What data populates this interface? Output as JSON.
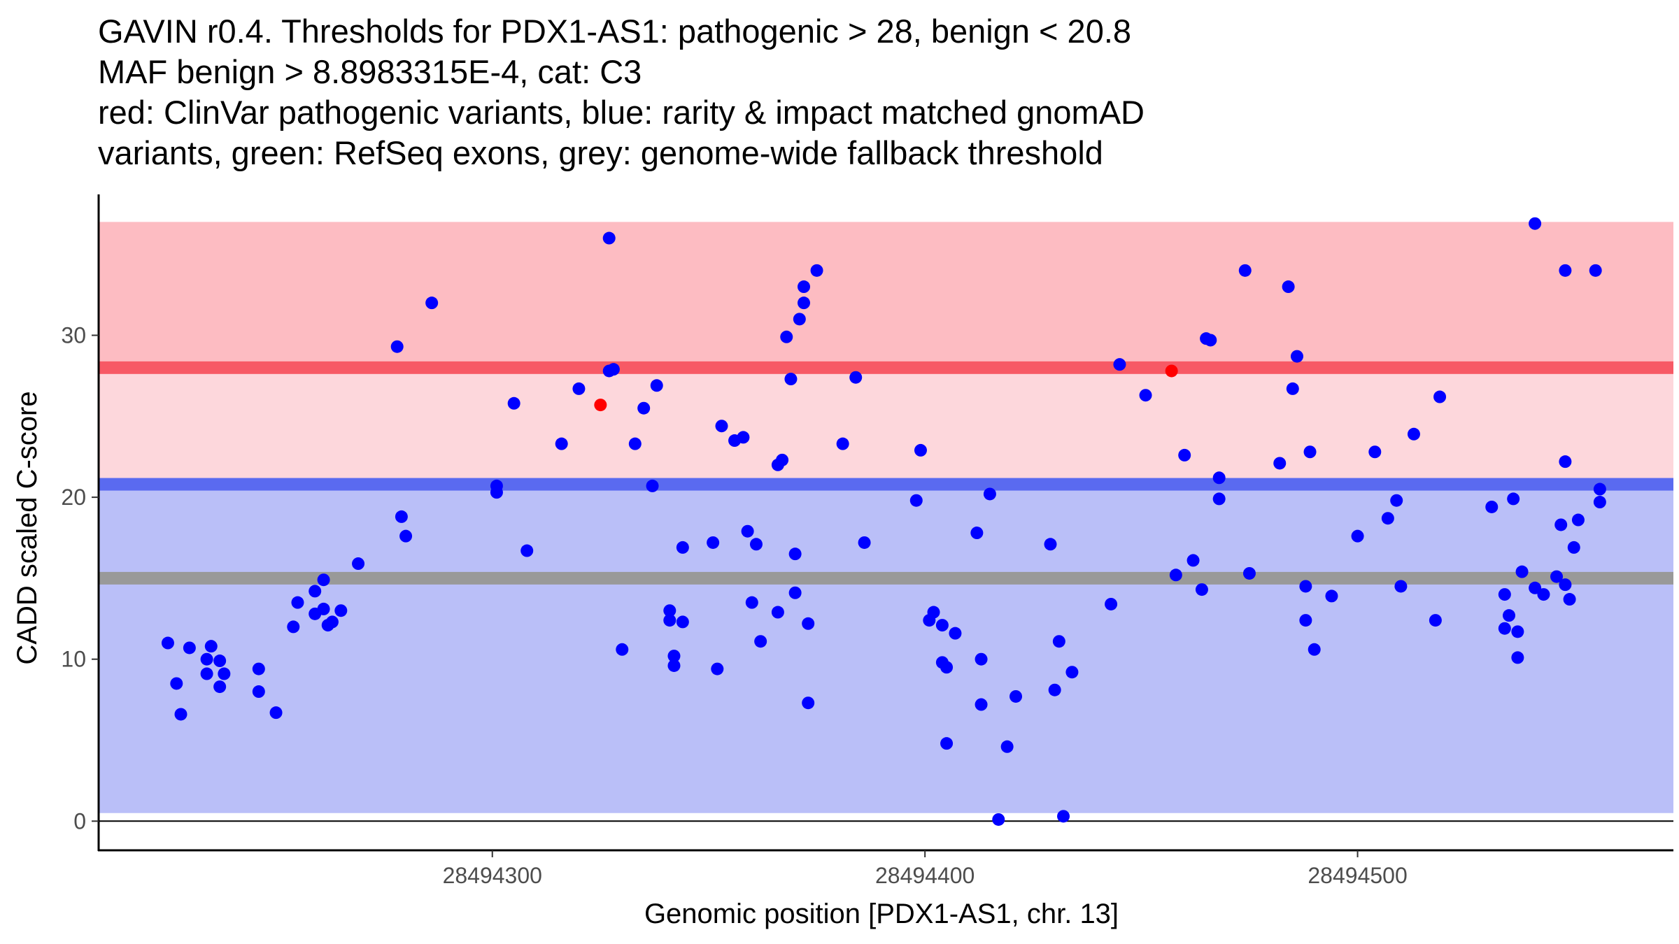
{
  "title_lines": [
    "GAVIN r0.4. Thresholds for PDX1-AS1: pathogenic > 28, benign < 20.8",
    "MAF benign > 8.8983315E-4, cat: C3",
    "red: ClinVar pathogenic variants, blue: rarity & impact matched gnomAD",
    "variants, green: RefSeq exons, grey: genome-wide fallback threshold"
  ],
  "chart_data": {
    "type": "scatter",
    "title": "GAVIN r0.4. Thresholds for PDX1-AS1: pathogenic > 28, benign < 20.8 / MAF benign > 8.8983315E-4, cat: C3",
    "xlabel": "Genomic position [PDX1-AS1, chr. 13]",
    "ylabel": "CADD scaled C-score",
    "xlim": [
      28494209,
      28494573
    ],
    "ylim": [
      -1.8,
      38.7
    ],
    "x_ticks": [
      28494300,
      28494400,
      28494500
    ],
    "x_tick_labels": [
      "28494300",
      "28494400",
      "28494500"
    ],
    "y_ticks": [
      0,
      10,
      20,
      30
    ],
    "y_tick_labels": [
      "0",
      "10",
      "20",
      "30"
    ],
    "colors": {
      "pathogenic_band": "#fdbcc2",
      "intermediate_band": "#fdd7dc",
      "benign_band": "#babff8",
      "pathogenic_line": "#f75965",
      "benign_line": "#5a6af0",
      "fallback_line": "#999999",
      "gnomad_points": "#0000ff",
      "clinvar_points": "#ff0000"
    },
    "bands": [
      {
        "name": "pathogenic region",
        "y0": 28,
        "y1": 37
      },
      {
        "name": "intermediate region",
        "y0": 20.8,
        "y1": 28
      },
      {
        "name": "benign region",
        "y0": 0.5,
        "y1": 20.8
      }
    ],
    "threshold_lines": [
      {
        "name": "pathogenic threshold",
        "y": 28
      },
      {
        "name": "benign threshold",
        "y": 20.8
      },
      {
        "name": "genome-wide fallback threshold",
        "y": 15
      }
    ],
    "series": [
      {
        "name": "ClinVar pathogenic variants",
        "points": [
          [
            28494325,
            25.7
          ],
          [
            28494457,
            27.8
          ]
        ]
      },
      {
        "name": "rarity & impact matched gnomAD variants",
        "points": [
          [
            28494225,
            11.0
          ],
          [
            28494227,
            8.5
          ],
          [
            28494228,
            6.6
          ],
          [
            28494230,
            10.7
          ],
          [
            28494234,
            10.0
          ],
          [
            28494234,
            9.1
          ],
          [
            28494235,
            10.8
          ],
          [
            28494237,
            8.3
          ],
          [
            28494237,
            9.9
          ],
          [
            28494238,
            9.1
          ],
          [
            28494246,
            9.4
          ],
          [
            28494246,
            8.0
          ],
          [
            28494250,
            6.7
          ],
          [
            28494254,
            12.0
          ],
          [
            28494255,
            13.5
          ],
          [
            28494259,
            14.2
          ],
          [
            28494259,
            12.8
          ],
          [
            28494261,
            14.9
          ],
          [
            28494261,
            13.1
          ],
          [
            28494262,
            12.1
          ],
          [
            28494263,
            12.3
          ],
          [
            28494265,
            13.0
          ],
          [
            28494269,
            15.9
          ],
          [
            28494278,
            29.3
          ],
          [
            28494279,
            18.8
          ],
          [
            28494280,
            17.6
          ],
          [
            28494286,
            32.0
          ],
          [
            28494301,
            20.7
          ],
          [
            28494301,
            20.3
          ],
          [
            28494305,
            25.8
          ],
          [
            28494308,
            16.7
          ],
          [
            28494316,
            23.3
          ],
          [
            28494320,
            26.7
          ],
          [
            28494327,
            36.0
          ],
          [
            28494327,
            27.8
          ],
          [
            28494328,
            27.9
          ],
          [
            28494330,
            10.6
          ],
          [
            28494333,
            23.3
          ],
          [
            28494335,
            25.5
          ],
          [
            28494337,
            20.7
          ],
          [
            28494338,
            26.9
          ],
          [
            28494341,
            13.0
          ],
          [
            28494341,
            12.4
          ],
          [
            28494342,
            10.2
          ],
          [
            28494342,
            9.6
          ],
          [
            28494344,
            16.9
          ],
          [
            28494344,
            12.3
          ],
          [
            28494351,
            17.2
          ],
          [
            28494352,
            9.4
          ],
          [
            28494353,
            24.4
          ],
          [
            28494356,
            23.5
          ],
          [
            28494358,
            23.7
          ],
          [
            28494359,
            17.9
          ],
          [
            28494360,
            13.5
          ],
          [
            28494361,
            17.1
          ],
          [
            28494362,
            11.1
          ],
          [
            28494366,
            12.9
          ],
          [
            28494366,
            22.0
          ],
          [
            28494367,
            22.3
          ],
          [
            28494368,
            29.9
          ],
          [
            28494369,
            27.3
          ],
          [
            28494370,
            16.5
          ],
          [
            28494370,
            14.1
          ],
          [
            28494371,
            31.0
          ],
          [
            28494372,
            32.0
          ],
          [
            28494372,
            33.0
          ],
          [
            28494373,
            12.2
          ],
          [
            28494373,
            7.3
          ],
          [
            28494375,
            34.0
          ],
          [
            28494381,
            23.3
          ],
          [
            28494384,
            27.4
          ],
          [
            28494386,
            17.2
          ],
          [
            28494398,
            19.8
          ],
          [
            28494399,
            22.9
          ],
          [
            28494401,
            12.4
          ],
          [
            28494402,
            12.9
          ],
          [
            28494404,
            12.1
          ],
          [
            28494404,
            9.8
          ],
          [
            28494405,
            9.5
          ],
          [
            28494405,
            4.8
          ],
          [
            28494407,
            11.6
          ],
          [
            28494412,
            17.8
          ],
          [
            28494413,
            7.2
          ],
          [
            28494413,
            10.0
          ],
          [
            28494415,
            20.2
          ],
          [
            28494417,
            0.1
          ],
          [
            28494419,
            4.6
          ],
          [
            28494421,
            7.7
          ],
          [
            28494429,
            17.1
          ],
          [
            28494430,
            8.1
          ],
          [
            28494431,
            11.1
          ],
          [
            28494432,
            0.3
          ],
          [
            28494434,
            9.2
          ],
          [
            28494443,
            13.4
          ],
          [
            28494445,
            28.2
          ],
          [
            28494451,
            26.3
          ],
          [
            28494458,
            15.2
          ],
          [
            28494460,
            22.6
          ],
          [
            28494462,
            16.1
          ],
          [
            28494464,
            14.3
          ],
          [
            28494465,
            29.8
          ],
          [
            28494466,
            29.7
          ],
          [
            28494468,
            21.2
          ],
          [
            28494468,
            19.9
          ],
          [
            28494474,
            34.0
          ],
          [
            28494475,
            15.3
          ],
          [
            28494482,
            22.1
          ],
          [
            28494484,
            33.0
          ],
          [
            28494485,
            26.7
          ],
          [
            28494486,
            28.7
          ],
          [
            28494488,
            12.4
          ],
          [
            28494488,
            14.5
          ],
          [
            28494489,
            22.8
          ],
          [
            28494490,
            10.6
          ],
          [
            28494494,
            13.9
          ],
          [
            28494500,
            17.6
          ],
          [
            28494504,
            22.8
          ],
          [
            28494507,
            18.7
          ],
          [
            28494509,
            19.8
          ],
          [
            28494510,
            14.5
          ],
          [
            28494513,
            23.9
          ],
          [
            28494518,
            12.4
          ],
          [
            28494519,
            26.2
          ],
          [
            28494531,
            19.4
          ],
          [
            28494534,
            14.0
          ],
          [
            28494534,
            11.9
          ],
          [
            28494535,
            12.7
          ],
          [
            28494536,
            19.9
          ],
          [
            28494537,
            11.7
          ],
          [
            28494537,
            10.1
          ],
          [
            28494538,
            15.4
          ],
          [
            28494541,
            36.9
          ],
          [
            28494541,
            14.4
          ],
          [
            28494543,
            14.0
          ],
          [
            28494546,
            15.1
          ],
          [
            28494547,
            18.3
          ],
          [
            28494548,
            34.0
          ],
          [
            28494548,
            22.2
          ],
          [
            28494548,
            14.6
          ],
          [
            28494549,
            13.7
          ],
          [
            28494550,
            16.9
          ],
          [
            28494551,
            18.6
          ],
          [
            28494555,
            34.0
          ],
          [
            28494556,
            20.5
          ],
          [
            28494556,
            19.7
          ]
        ]
      }
    ]
  }
}
